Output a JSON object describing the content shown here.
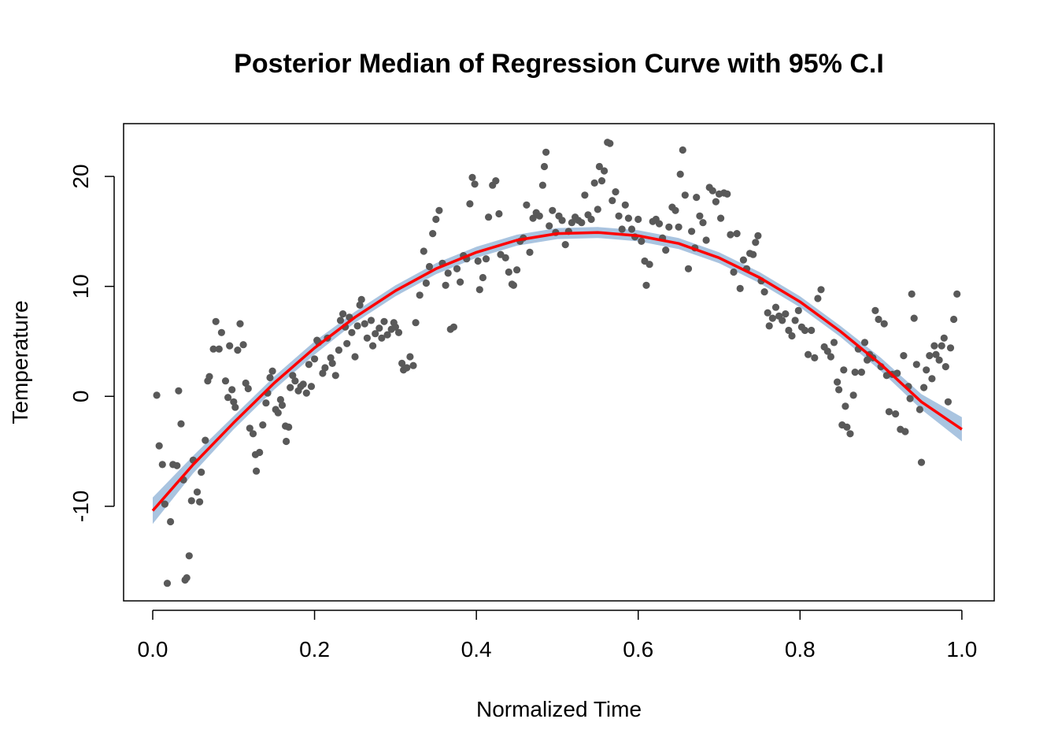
{
  "chart_data": {
    "type": "scatter",
    "title": "Posterior Median of Regression Curve with 95% C.I",
    "xlabel": "Normalized Time",
    "ylabel": "Temperature",
    "xlim": [
      -0.036,
      1.04
    ],
    "ylim": [
      -18.6,
      24.8
    ],
    "x_ticks": [
      0.0,
      0.2,
      0.4,
      0.6,
      0.8,
      1.0
    ],
    "x_tick_labels": [
      "0.0",
      "0.2",
      "0.4",
      "0.6",
      "0.8",
      "1.0"
    ],
    "y_ticks": [
      -10,
      0,
      10,
      20
    ],
    "y_tick_labels": [
      "-10",
      "0",
      "10",
      "20"
    ],
    "grid": false,
    "colors": {
      "points": "#595959",
      "curve": "#ff0000",
      "band": "#a9c4e0"
    },
    "curve": {
      "name": "",
      "x": [
        0.0,
        0.05,
        0.1,
        0.15,
        0.2,
        0.25,
        0.3,
        0.35,
        0.4,
        0.45,
        0.5,
        0.55,
        0.6,
        0.65,
        0.7,
        0.75,
        0.8,
        0.85,
        0.9,
        0.95,
        1.0
      ],
      "y": [
        -10.4,
        -6.2,
        -2.4,
        1.2,
        4.4,
        7.2,
        9.6,
        11.6,
        13.1,
        14.2,
        14.8,
        14.9,
        14.6,
        13.9,
        12.6,
        10.8,
        8.6,
        5.9,
        2.9,
        -0.5,
        -3.0
      ]
    },
    "band": {
      "x": [
        0.0,
        0.05,
        0.1,
        0.15,
        0.2,
        0.25,
        0.3,
        0.35,
        0.4,
        0.45,
        0.5,
        0.55,
        0.6,
        0.65,
        0.7,
        0.75,
        0.8,
        0.85,
        0.9,
        0.95,
        1.0
      ],
      "lower": [
        -11.6,
        -7.0,
        -3.0,
        0.6,
        3.8,
        6.7,
        9.1,
        11.1,
        12.6,
        13.7,
        14.3,
        14.4,
        14.1,
        13.4,
        12.1,
        10.3,
        8.1,
        5.4,
        2.3,
        -1.2,
        -4.1
      ],
      "upper": [
        -9.2,
        -5.4,
        -1.8,
        1.8,
        5.0,
        7.7,
        10.1,
        12.1,
        13.6,
        14.7,
        15.3,
        15.4,
        15.1,
        14.4,
        13.1,
        11.3,
        9.1,
        6.4,
        3.5,
        0.2,
        -1.9
      ]
    },
    "points": [
      [
        0.005,
        0.1
      ],
      [
        0.008,
        -4.5
      ],
      [
        0.012,
        -6.2
      ],
      [
        0.015,
        -9.8
      ],
      [
        0.018,
        -17.0
      ],
      [
        0.022,
        -11.4
      ],
      [
        0.025,
        -6.2
      ],
      [
        0.03,
        -6.3
      ],
      [
        0.032,
        0.5
      ],
      [
        0.035,
        -2.5
      ],
      [
        0.038,
        -7.6
      ],
      [
        0.04,
        -16.7
      ],
      [
        0.042,
        -16.5
      ],
      [
        0.045,
        -14.5
      ],
      [
        0.048,
        -9.5
      ],
      [
        0.05,
        -5.8
      ],
      [
        0.055,
        -8.7
      ],
      [
        0.058,
        -9.6
      ],
      [
        0.06,
        -6.9
      ],
      [
        0.065,
        -4.0
      ],
      [
        0.068,
        1.4
      ],
      [
        0.07,
        1.8
      ],
      [
        0.075,
        4.3
      ],
      [
        0.078,
        6.8
      ],
      [
        0.082,
        4.3
      ],
      [
        0.085,
        5.8
      ],
      [
        0.09,
        1.4
      ],
      [
        0.093,
        -0.1
      ],
      [
        0.095,
        4.6
      ],
      [
        0.098,
        0.6
      ],
      [
        0.1,
        -0.5
      ],
      [
        0.102,
        -1.0
      ],
      [
        0.105,
        4.2
      ],
      [
        0.108,
        6.6
      ],
      [
        0.112,
        4.7
      ],
      [
        0.115,
        1.2
      ],
      [
        0.118,
        0.7
      ],
      [
        0.12,
        -2.9
      ],
      [
        0.124,
        -3.4
      ],
      [
        0.127,
        -5.3
      ],
      [
        0.128,
        -6.8
      ],
      [
        0.132,
        -5.1
      ],
      [
        0.136,
        -2.6
      ],
      [
        0.14,
        -0.6
      ],
      [
        0.142,
        0.3
      ],
      [
        0.145,
        1.7
      ],
      [
        0.148,
        2.3
      ],
      [
        0.152,
        -1.2
      ],
      [
        0.155,
        -1.5
      ],
      [
        0.158,
        -0.3
      ],
      [
        0.16,
        -0.8
      ],
      [
        0.164,
        -2.7
      ],
      [
        0.165,
        -4.1
      ],
      [
        0.168,
        -2.8
      ],
      [
        0.17,
        0.8
      ],
      [
        0.173,
        1.9
      ],
      [
        0.176,
        1.4
      ],
      [
        0.18,
        0.5
      ],
      [
        0.183,
        0.9
      ],
      [
        0.186,
        1.1
      ],
      [
        0.19,
        0.3
      ],
      [
        0.193,
        2.9
      ],
      [
        0.196,
        0.9
      ],
      [
        0.2,
        3.4
      ],
      [
        0.203,
        5.1
      ],
      [
        0.205,
        4.9
      ],
      [
        0.21,
        2.1
      ],
      [
        0.213,
        2.6
      ],
      [
        0.216,
        5.3
      ],
      [
        0.22,
        3.5
      ],
      [
        0.222,
        3.0
      ],
      [
        0.226,
        1.9
      ],
      [
        0.23,
        4.2
      ],
      [
        0.232,
        6.9
      ],
      [
        0.235,
        7.5
      ],
      [
        0.238,
        6.3
      ],
      [
        0.24,
        4.8
      ],
      [
        0.243,
        7.2
      ],
      [
        0.246,
        5.8
      ],
      [
        0.25,
        3.6
      ],
      [
        0.253,
        6.4
      ],
      [
        0.256,
        8.3
      ],
      [
        0.258,
        8.8
      ],
      [
        0.262,
        6.6
      ],
      [
        0.265,
        5.3
      ],
      [
        0.27,
        6.9
      ],
      [
        0.272,
        4.6
      ],
      [
        0.275,
        5.7
      ],
      [
        0.28,
        6.2
      ],
      [
        0.283,
        5.3
      ],
      [
        0.286,
        6.8
      ],
      [
        0.29,
        5.6
      ],
      [
        0.295,
        6.1
      ],
      [
        0.298,
        6.7
      ],
      [
        0.3,
        6.3
      ],
      [
        0.304,
        5.8
      ],
      [
        0.308,
        3.0
      ],
      [
        0.31,
        2.4
      ],
      [
        0.314,
        2.6
      ],
      [
        0.318,
        3.6
      ],
      [
        0.322,
        2.8
      ],
      [
        0.325,
        6.7
      ],
      [
        0.33,
        9.2
      ],
      [
        0.335,
        13.2
      ],
      [
        0.338,
        10.3
      ],
      [
        0.342,
        11.8
      ],
      [
        0.346,
        14.8
      ],
      [
        0.35,
        16.1
      ],
      [
        0.354,
        16.9
      ],
      [
        0.358,
        12.1
      ],
      [
        0.362,
        10.1
      ],
      [
        0.365,
        11.2
      ],
      [
        0.368,
        6.1
      ],
      [
        0.372,
        6.3
      ],
      [
        0.376,
        11.6
      ],
      [
        0.38,
        10.4
      ],
      [
        0.384,
        12.8
      ],
      [
        0.388,
        12.5
      ],
      [
        0.392,
        17.5
      ],
      [
        0.395,
        19.9
      ],
      [
        0.398,
        19.3
      ],
      [
        0.402,
        12.3
      ],
      [
        0.404,
        9.7
      ],
      [
        0.408,
        10.8
      ],
      [
        0.412,
        12.5
      ],
      [
        0.415,
        16.3
      ],
      [
        0.42,
        19.2
      ],
      [
        0.424,
        19.6
      ],
      [
        0.428,
        16.6
      ],
      [
        0.43,
        12.9
      ],
      [
        0.436,
        12.6
      ],
      [
        0.44,
        11.3
      ],
      [
        0.444,
        10.2
      ],
      [
        0.446,
        10.1
      ],
      [
        0.45,
        11.5
      ],
      [
        0.454,
        14.1
      ],
      [
        0.458,
        14.4
      ],
      [
        0.462,
        17.4
      ],
      [
        0.466,
        13.1
      ],
      [
        0.47,
        16.2
      ],
      [
        0.474,
        16.7
      ],
      [
        0.478,
        16.4
      ],
      [
        0.482,
        19.2
      ],
      [
        0.484,
        20.9
      ],
      [
        0.486,
        22.2
      ],
      [
        0.49,
        15.5
      ],
      [
        0.494,
        16.9
      ],
      [
        0.498,
        14.9
      ],
      [
        0.502,
        16.4
      ],
      [
        0.506,
        16.0
      ],
      [
        0.51,
        13.8
      ],
      [
        0.514,
        15.0
      ],
      [
        0.518,
        15.8
      ],
      [
        0.522,
        16.3
      ],
      [
        0.526,
        16.0
      ],
      [
        0.53,
        15.8
      ],
      [
        0.534,
        18.3
      ],
      [
        0.538,
        16.5
      ],
      [
        0.542,
        16.1
      ],
      [
        0.546,
        19.4
      ],
      [
        0.55,
        17.0
      ],
      [
        0.552,
        20.9
      ],
      [
        0.555,
        19.6
      ],
      [
        0.558,
        20.5
      ],
      [
        0.562,
        23.1
      ],
      [
        0.565,
        23.0
      ],
      [
        0.568,
        17.8
      ],
      [
        0.572,
        18.6
      ],
      [
        0.576,
        16.4
      ],
      [
        0.58,
        15.2
      ],
      [
        0.584,
        17.4
      ],
      [
        0.588,
        16.2
      ],
      [
        0.592,
        15.2
      ],
      [
        0.596,
        14.5
      ],
      [
        0.6,
        16.1
      ],
      [
        0.604,
        14.1
      ],
      [
        0.608,
        12.3
      ],
      [
        0.61,
        10.1
      ],
      [
        0.614,
        12.0
      ],
      [
        0.618,
        15.9
      ],
      [
        0.622,
        16.1
      ],
      [
        0.626,
        15.7
      ],
      [
        0.63,
        14.4
      ],
      [
        0.634,
        13.3
      ],
      [
        0.638,
        15.4
      ],
      [
        0.642,
        17.2
      ],
      [
        0.646,
        16.9
      ],
      [
        0.65,
        15.4
      ],
      [
        0.652,
        20.2
      ],
      [
        0.655,
        22.4
      ],
      [
        0.658,
        18.3
      ],
      [
        0.662,
        11.6
      ],
      [
        0.666,
        15.0
      ],
      [
        0.67,
        13.5
      ],
      [
        0.672,
        18.1
      ],
      [
        0.676,
        16.4
      ],
      [
        0.68,
        15.8
      ],
      [
        0.684,
        14.2
      ],
      [
        0.688,
        19.0
      ],
      [
        0.692,
        18.7
      ],
      [
        0.696,
        17.7
      ],
      [
        0.7,
        18.4
      ],
      [
        0.702,
        16.2
      ],
      [
        0.706,
        18.5
      ],
      [
        0.71,
        18.4
      ],
      [
        0.714,
        14.7
      ],
      [
        0.718,
        11.3
      ],
      [
        0.722,
        14.8
      ],
      [
        0.726,
        9.8
      ],
      [
        0.73,
        12.4
      ],
      [
        0.734,
        11.6
      ],
      [
        0.738,
        13.0
      ],
      [
        0.742,
        12.9
      ],
      [
        0.745,
        14.0
      ],
      [
        0.748,
        14.6
      ],
      [
        0.752,
        10.5
      ],
      [
        0.756,
        9.5
      ],
      [
        0.76,
        7.6
      ],
      [
        0.762,
        6.4
      ],
      [
        0.766,
        7.1
      ],
      [
        0.77,
        8.1
      ],
      [
        0.774,
        7.3
      ],
      [
        0.778,
        6.9
      ],
      [
        0.782,
        7.5
      ],
      [
        0.786,
        6.0
      ],
      [
        0.79,
        5.5
      ],
      [
        0.794,
        6.9
      ],
      [
        0.798,
        7.8
      ],
      [
        0.802,
        6.3
      ],
      [
        0.806,
        6.0
      ],
      [
        0.81,
        3.8
      ],
      [
        0.814,
        6.0
      ],
      [
        0.818,
        3.5
      ],
      [
        0.822,
        8.9
      ],
      [
        0.826,
        9.7
      ],
      [
        0.83,
        4.5
      ],
      [
        0.834,
        4.1
      ],
      [
        0.838,
        3.6
      ],
      [
        0.842,
        4.9
      ],
      [
        0.846,
        1.3
      ],
      [
        0.848,
        0.6
      ],
      [
        0.852,
        -2.6
      ],
      [
        0.854,
        2.4
      ],
      [
        0.856,
        -0.9
      ],
      [
        0.858,
        -2.8
      ],
      [
        0.862,
        -3.4
      ],
      [
        0.866,
        0.1
      ],
      [
        0.868,
        2.2
      ],
      [
        0.872,
        4.3
      ],
      [
        0.876,
        2.2
      ],
      [
        0.88,
        4.9
      ],
      [
        0.883,
        3.3
      ],
      [
        0.886,
        3.8
      ],
      [
        0.89,
        3.5
      ],
      [
        0.893,
        7.8
      ],
      [
        0.897,
        7.0
      ],
      [
        0.9,
        2.7
      ],
      [
        0.904,
        6.6
      ],
      [
        0.907,
        1.9
      ],
      [
        0.91,
        -1.4
      ],
      [
        0.914,
        2.0
      ],
      [
        0.918,
        -1.6
      ],
      [
        0.92,
        2.1
      ],
      [
        0.924,
        -3.0
      ],
      [
        0.928,
        3.7
      ],
      [
        0.93,
        -3.2
      ],
      [
        0.934,
        0.9
      ],
      [
        0.936,
        -0.2
      ],
      [
        0.938,
        9.3
      ],
      [
        0.941,
        7.1
      ],
      [
        0.944,
        2.9
      ],
      [
        0.948,
        -1.2
      ],
      [
        0.95,
        -6.0
      ],
      [
        0.953,
        0.8
      ],
      [
        0.956,
        2.4
      ],
      [
        0.96,
        3.7
      ],
      [
        0.963,
        1.6
      ],
      [
        0.966,
        4.6
      ],
      [
        0.968,
        3.8
      ],
      [
        0.972,
        3.3
      ],
      [
        0.975,
        4.6
      ],
      [
        0.978,
        5.3
      ],
      [
        0.98,
        2.7
      ],
      [
        0.983,
        -0.5
      ],
      [
        0.986,
        4.4
      ],
      [
        0.99,
        7.0
      ],
      [
        0.994,
        9.3
      ]
    ]
  }
}
